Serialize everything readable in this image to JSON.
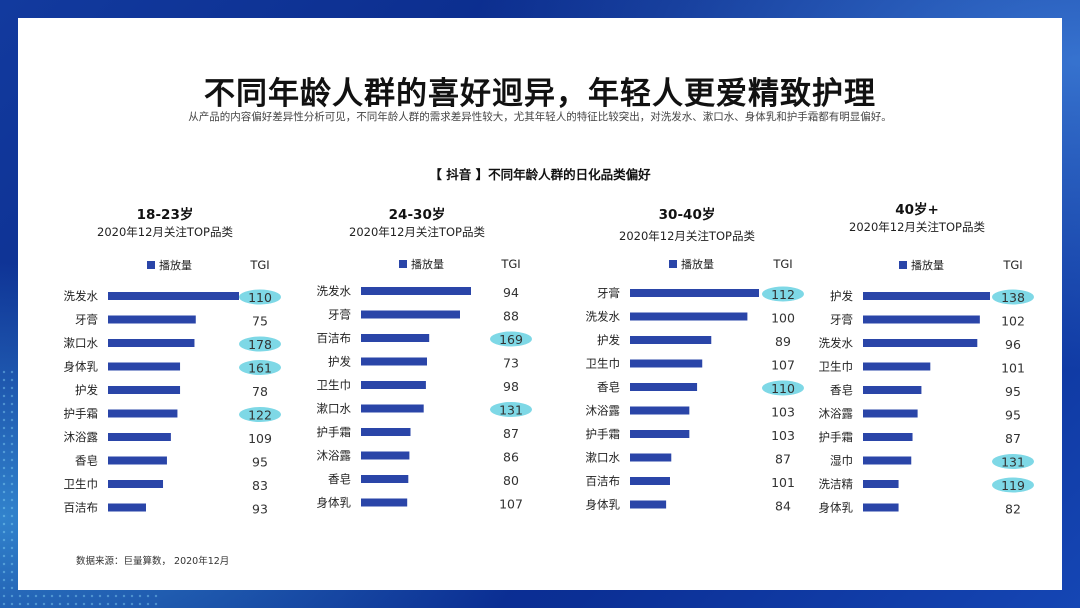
{
  "header": {
    "title": "不同年龄人群的喜好迥异，年轻人更爱精致护理",
    "subtitle": "从产品的内容偏好差异性分析可见，不同年龄人群的需求差异性较大，尤其年轻人的特征比较突出，对洗发水、漱口水、身体乳和护手霜都有明显偏好。"
  },
  "chart_data": {
    "type": "bar",
    "title": "【 抖音 】不同年龄人群的日化品类偏好",
    "legend_label": "播放量",
    "tgi_label": "TGI",
    "colors": {
      "bar": "#2a45a8",
      "highlight": "#7ed8e6"
    },
    "groups": [
      {
        "name": "18-23岁",
        "subtitle": "2020年12月关注TOP品类",
        "categories": [
          "洗发水",
          "牙膏",
          "漱口水",
          "身体乳",
          "护发",
          "护手霜",
          "沐浴露",
          "香皂",
          "卫生巾",
          "百洁布"
        ],
        "values": [
          100,
          67,
          66,
          55,
          55,
          53,
          48,
          45,
          42,
          29
        ],
        "tgi": [
          "110",
          "75",
          "178",
          "161",
          "78",
          "122",
          "109",
          "95",
          "83",
          "93"
        ],
        "highlight": [
          true,
          false,
          true,
          true,
          false,
          true,
          false,
          false,
          false,
          false
        ]
      },
      {
        "name": "24-30岁",
        "subtitle": "2020年12月关注TOP品类",
        "categories": [
          "洗发水",
          "牙膏",
          "百洁布",
          "护发",
          "卫生巾",
          "漱口水",
          "护手霜",
          "沐浴露",
          "香皂",
          "身体乳"
        ],
        "values": [
          100,
          90,
          62,
          60,
          59,
          57,
          45,
          44,
          43,
          42
        ],
        "tgi": [
          "94",
          "88",
          "169",
          "73",
          "98",
          "131",
          "87",
          "86",
          "80",
          "107"
        ],
        "highlight": [
          false,
          false,
          true,
          false,
          false,
          true,
          false,
          false,
          false,
          false
        ]
      },
      {
        "name": "30-40岁",
        "subtitle": "2020年12月关注TOP品类",
        "categories": [
          "牙膏",
          "洗发水",
          "护发",
          "卫生巾",
          "香皂",
          "沐浴露",
          "护手霜",
          "漱口水",
          "百洁布",
          "身体乳"
        ],
        "values": [
          100,
          91,
          63,
          56,
          52,
          46,
          46,
          32,
          31,
          28
        ],
        "tgi": [
          "112",
          "100",
          "89",
          "107",
          "110",
          "103",
          "103",
          "87",
          "101",
          "84"
        ],
        "highlight": [
          true,
          false,
          false,
          false,
          true,
          false,
          false,
          false,
          false,
          false
        ]
      },
      {
        "name": "40岁+",
        "subtitle": "2020年12月关注TOP品类",
        "categories": [
          "护发",
          "牙膏",
          "洗发水",
          "卫生巾",
          "香皂",
          "沐浴露",
          "护手霜",
          "湿巾",
          "洗洁精",
          "身体乳"
        ],
        "values": [
          100,
          92,
          90,
          53,
          46,
          43,
          39,
          38,
          28,
          28
        ],
        "tgi": [
          "138",
          "102",
          "96",
          "101",
          "95",
          "95",
          "87",
          "131",
          "119",
          "82"
        ],
        "highlight": [
          true,
          false,
          false,
          false,
          false,
          false,
          false,
          true,
          true,
          false
        ]
      }
    ]
  },
  "footer": {
    "source": "数据来源：巨量算数， 2020年12月"
  }
}
